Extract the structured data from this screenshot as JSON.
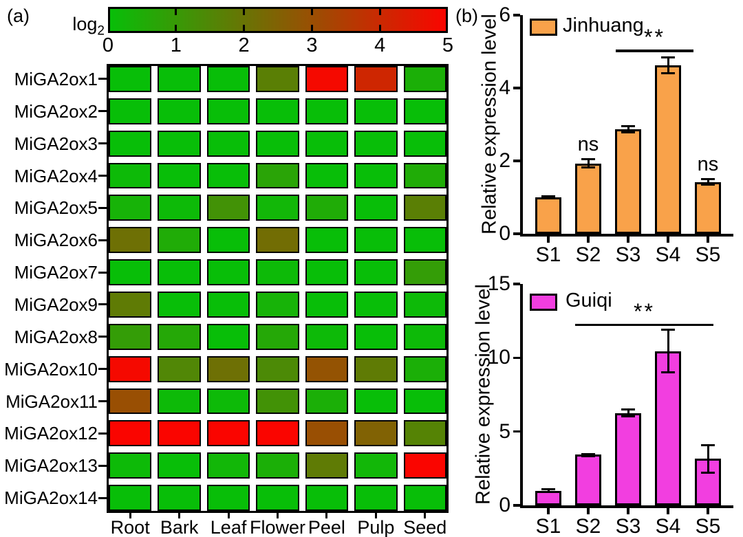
{
  "chart_data": [
    {
      "type": "heatmap",
      "panel": "(a)",
      "colorbar": {
        "label": "log",
        "label_subscript": "2",
        "ticks": [
          "0",
          "1",
          "2",
          "3",
          "4",
          "5"
        ],
        "range": [
          0,
          5
        ],
        "min_color": "#08BE08",
        "max_color": "#FA0500"
      },
      "rows": [
        "MiGA2ox1",
        "MiGA2ox2",
        "MiGA2ox3",
        "MiGA2ox4",
        "MiGA2ox5",
        "MiGA2ox6",
        "MiGA2ox7",
        "MiGA2ox9",
        "MiGA2ox8",
        "MiGA2ox10",
        "MiGA2ox11",
        "MiGA2ox12",
        "MiGA2ox13",
        "MiGA2ox14"
      ],
      "columns": [
        "Root",
        "Bark",
        "Leaf",
        "Flower",
        "Peel",
        "Pulp",
        "Seed"
      ],
      "values_log2": [
        [
          0,
          0,
          0,
          1.7,
          4.9,
          4.1,
          0.4
        ],
        [
          0,
          0,
          0,
          0,
          0,
          0,
          0
        ],
        [
          0,
          0,
          0,
          0,
          0,
          0,
          0
        ],
        [
          0.1,
          0,
          0,
          0.7,
          0,
          0,
          0.5
        ],
        [
          0.3,
          0.1,
          1.2,
          0.2,
          0.5,
          0,
          1.7
        ],
        [
          2.1,
          0.5,
          0,
          2.2,
          0,
          0,
          0
        ],
        [
          0,
          0,
          0,
          0.1,
          0,
          0,
          0.9
        ],
        [
          1.8,
          0,
          0,
          0.3,
          0,
          0,
          0.1
        ],
        [
          0.9,
          0.6,
          0,
          0.6,
          0.1,
          0,
          0.1
        ],
        [
          4.9,
          1.5,
          2.1,
          1.4,
          2.9,
          1.8,
          0.4
        ],
        [
          3.0,
          0.1,
          0.1,
          1.2,
          0.4,
          0,
          0
        ],
        [
          5,
          5,
          5,
          5,
          3.0,
          2.5,
          1.6
        ],
        [
          0.1,
          0,
          0.2,
          0.4,
          1.8,
          0.2,
          5
        ],
        [
          0,
          0,
          0,
          0,
          0,
          0,
          0
        ]
      ]
    },
    {
      "type": "bar",
      "panel": "(b)",
      "legend": "Jinhuang",
      "bar_color": "#F9A24A",
      "ylabel": "Relative expression level",
      "categories": [
        "S1",
        "S2",
        "S3",
        "S4",
        "S5"
      ],
      "values": [
        1.0,
        1.93,
        2.87,
        4.62,
        1.42
      ],
      "errors": [
        0.06,
        0.14,
        0.12,
        0.25,
        0.1
      ],
      "ylim": [
        0,
        6
      ],
      "yticks": [
        "0",
        "2",
        "4",
        "6"
      ],
      "bar_annotations": [
        {
          "index": 1,
          "text": "ns"
        },
        {
          "index": 4,
          "text": "ns"
        }
      ],
      "significance": {
        "text": "**",
        "from_category": "S3",
        "to_category": "S5",
        "line_y": 5.05
      }
    },
    {
      "type": "bar",
      "panel": "(b)",
      "legend": "Guiqi",
      "bar_color": "#F23EE0",
      "ylabel": "Relative expression level",
      "categories": [
        "S1",
        "S2",
        "S3",
        "S4",
        "S5"
      ],
      "values": [
        1.0,
        3.45,
        6.25,
        10.45,
        3.15
      ],
      "errors": [
        0.15,
        0.1,
        0.3,
        1.5,
        1.0
      ],
      "ylim": [
        0,
        15
      ],
      "yticks": [
        "0",
        "5",
        "10",
        "15"
      ],
      "bar_annotations": [],
      "significance": {
        "text": "**",
        "from_category": "S2",
        "to_category": "S5",
        "line_y": 12.3
      }
    }
  ]
}
